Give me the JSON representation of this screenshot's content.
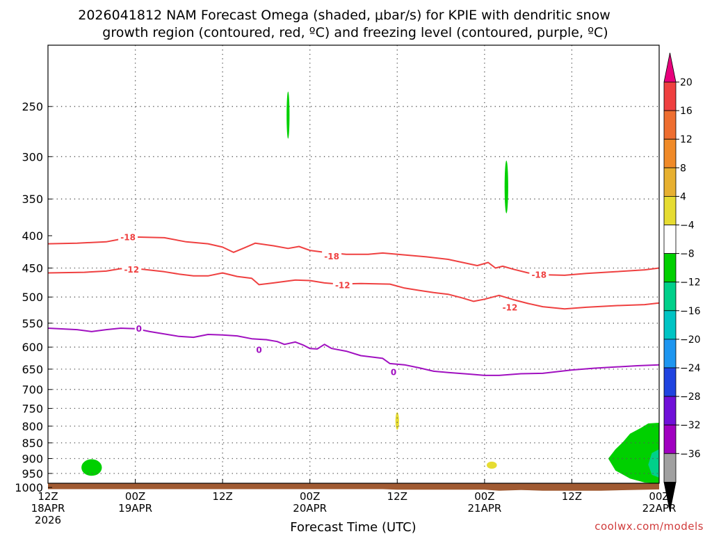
{
  "chart_data": {
    "type": "contour",
    "title_lines": [
      "2026041812 NAM Forecast Omega (shaded, μbar/s) for KPIE with dendritic snow",
      "growth region (contoured, red, ºC) and freezing level (contoured, purple, ºC)"
    ],
    "xlabel": "Forecast Time (UTC)",
    "credit": "coolwx.com/models",
    "x_ticks": [
      {
        "hour": 0,
        "line1": "12Z",
        "line2": "18APR",
        "line3": "2026"
      },
      {
        "hour": 12,
        "line1": "00Z",
        "line2": "19APR",
        "line3": ""
      },
      {
        "hour": 24,
        "line1": "12Z",
        "line2": "",
        "line3": ""
      },
      {
        "hour": 36,
        "line1": "00Z",
        "line2": "20APR",
        "line3": ""
      },
      {
        "hour": 48,
        "line1": "12Z",
        "line2": "",
        "line3": ""
      },
      {
        "hour": 60,
        "line1": "00Z",
        "line2": "21APR",
        "line3": ""
      },
      {
        "hour": 72,
        "line1": "12Z",
        "line2": "",
        "line3": ""
      },
      {
        "hour": 84,
        "line1": "00Z",
        "line2": "22APR",
        "line3": ""
      }
    ],
    "y_ticks": [
      250,
      300,
      350,
      400,
      450,
      500,
      550,
      600,
      650,
      700,
      750,
      800,
      850,
      900,
      950,
      1000
    ],
    "y_labels": [
      "250",
      "300",
      "350",
      "400",
      "450",
      "500",
      "550",
      "600",
      "650",
      "700",
      "750",
      "800",
      "850",
      "900",
      "950",
      "1000"
    ],
    "y_grid": [
      250,
      300,
      350,
      450,
      500,
      550,
      600,
      650,
      700,
      750,
      800,
      850,
      900,
      950
    ],
    "x_grid": [
      12,
      24,
      36,
      48,
      60,
      72
    ],
    "xlim": [
      0,
      84
    ],
    "ylim_hPa": [
      1030,
      200
    ],
    "grid": "dotted",
    "colorbar": {
      "placement": "right",
      "tick_labels": [
        "20",
        "16",
        "12",
        "8",
        "4",
        "−4",
        "−8",
        "−12",
        "−16",
        "−20",
        "−24",
        "−28",
        "−32",
        "−36"
      ],
      "levels": [
        20,
        16,
        12,
        8,
        4,
        -4,
        -8,
        -12,
        -16,
        -20,
        -24,
        -28,
        -32,
        -36
      ],
      "band_colors": [
        "#ef4040",
        "#ee6e30",
        "#f08a28",
        "#e7b030",
        "#e6dc32",
        "#ffffff",
        "#00d000",
        "#00d08a",
        "#00c4c4",
        "#1e96f0",
        "#2044e0",
        "#7010d8",
        "#a000c0",
        "#a0a0a0"
      ],
      "top_arrow_color": "#e8007c",
      "bottom_arrow_color": "#000000"
    },
    "contour_lines": [
      {
        "label": "-18",
        "color": "#ef4040",
        "label_positions": [
          [
            11,
            402
          ],
          [
            39,
            431
          ],
          [
            67.5,
            461
          ]
        ],
        "points": [
          [
            0,
            412
          ],
          [
            4,
            411
          ],
          [
            8,
            409
          ],
          [
            10,
            405
          ],
          [
            12,
            402
          ],
          [
            16,
            403
          ],
          [
            19,
            409
          ],
          [
            22,
            412
          ],
          [
            24,
            417
          ],
          [
            25.5,
            425
          ],
          [
            27,
            418
          ],
          [
            28.5,
            411
          ],
          [
            31,
            415
          ],
          [
            33,
            419
          ],
          [
            34.5,
            416
          ],
          [
            36,
            422
          ],
          [
            38,
            425
          ],
          [
            41,
            428
          ],
          [
            44,
            428
          ],
          [
            46,
            426
          ],
          [
            49,
            429
          ],
          [
            52,
            432
          ],
          [
            55,
            436
          ],
          [
            57,
            441
          ],
          [
            59,
            446
          ],
          [
            60.5,
            441
          ],
          [
            61.5,
            450
          ],
          [
            62.5,
            447
          ],
          [
            64,
            452
          ],
          [
            66,
            458
          ],
          [
            68,
            461
          ],
          [
            71,
            462
          ],
          [
            74,
            459
          ],
          [
            78,
            456
          ],
          [
            82,
            453
          ],
          [
            84,
            450
          ]
        ]
      },
      {
        "label": "-12",
        "color": "#ef4040",
        "label_positions": [
          [
            11.5,
            452
          ],
          [
            40.5,
            479
          ],
          [
            63.5,
            519
          ]
        ],
        "points": [
          [
            0,
            458
          ],
          [
            5,
            457
          ],
          [
            8,
            455
          ],
          [
            10,
            451
          ],
          [
            13,
            452
          ],
          [
            16,
            456
          ],
          [
            18,
            460
          ],
          [
            20,
            463
          ],
          [
            22,
            463
          ],
          [
            24,
            458
          ],
          [
            26,
            464
          ],
          [
            28,
            467
          ],
          [
            29,
            478
          ],
          [
            31,
            475
          ],
          [
            34,
            470
          ],
          [
            36,
            471
          ],
          [
            38,
            475
          ],
          [
            40,
            477
          ],
          [
            43,
            476
          ],
          [
            47,
            477
          ],
          [
            49,
            484
          ],
          [
            51,
            488
          ],
          [
            53,
            492
          ],
          [
            55,
            495
          ],
          [
            57,
            502
          ],
          [
            58.5,
            508
          ],
          [
            60,
            504
          ],
          [
            62,
            497
          ],
          [
            64,
            505
          ],
          [
            66,
            512
          ],
          [
            68,
            518
          ],
          [
            71,
            522
          ],
          [
            74,
            519
          ],
          [
            78,
            516
          ],
          [
            82,
            514
          ],
          [
            84,
            511
          ]
        ]
      },
      {
        "label": "0",
        "color": "#a010c0",
        "label_positions": [
          [
            12.5,
            561
          ],
          [
            29,
            606
          ],
          [
            47.5,
            657
          ]
        ],
        "points": [
          [
            0,
            560
          ],
          [
            4,
            563
          ],
          [
            6,
            567
          ],
          [
            8,
            563
          ],
          [
            10,
            560
          ],
          [
            12,
            561
          ],
          [
            14,
            567
          ],
          [
            18,
            577
          ],
          [
            20,
            579
          ],
          [
            22,
            573
          ],
          [
            24,
            574
          ],
          [
            26,
            576
          ],
          [
            28,
            582
          ],
          [
            30,
            584
          ],
          [
            31.5,
            588
          ],
          [
            32.5,
            594
          ],
          [
            34,
            589
          ],
          [
            35,
            595
          ],
          [
            36,
            603
          ],
          [
            37,
            604
          ],
          [
            38,
            594
          ],
          [
            39,
            603
          ],
          [
            41,
            609
          ],
          [
            43,
            619
          ],
          [
            46,
            625
          ],
          [
            47,
            637
          ],
          [
            49,
            640
          ],
          [
            51,
            647
          ],
          [
            53,
            655
          ],
          [
            55,
            658
          ],
          [
            58,
            662
          ],
          [
            60,
            665
          ],
          [
            62,
            665
          ],
          [
            65,
            661
          ],
          [
            68,
            660
          ],
          [
            72,
            652
          ],
          [
            75,
            648
          ],
          [
            78,
            645
          ],
          [
            81,
            642
          ],
          [
            84,
            640
          ]
        ]
      }
    ],
    "shaded_regions": [
      {
        "band": "-4 to -8",
        "color": "#00d000",
        "x": 6.0,
        "y": 930,
        "rx": 1.4,
        "ry": 28
      },
      {
        "band": "-4 to -8",
        "color": "#00d000",
        "x": 33.0,
        "y": 258,
        "rx": 0.2,
        "ry": 22
      },
      {
        "band": "-4 to -8",
        "color": "#00d000",
        "x": 63.0,
        "y": 335,
        "rx": 0.25,
        "ry": 32
      },
      {
        "band": "4 to 8",
        "color": "#e6dc32",
        "x": 48.0,
        "y": 785,
        "rx": 0.25,
        "ry": 25
      },
      {
        "band": "4 to 8",
        "color": "#e6dc32",
        "x": 61.0,
        "y": 922,
        "rx": 0.7,
        "ry": 12
      }
    ],
    "edge_region": {
      "outer": {
        "band": "-4 to -8",
        "color": "#00d000",
        "points": [
          [
            84,
            790
          ],
          [
            82.5,
            792
          ],
          [
            81.5,
            805
          ],
          [
            80,
            822
          ],
          [
            79,
            848
          ],
          [
            78,
            870
          ],
          [
            77,
            900
          ],
          [
            78,
            940
          ],
          [
            80,
            968
          ],
          [
            82,
            982
          ],
          [
            84,
            985
          ]
        ]
      },
      "inner": {
        "band": "-8 to -12",
        "color": "#00d08a",
        "points": [
          [
            84,
            870
          ],
          [
            83,
            882
          ],
          [
            82.5,
            920
          ],
          [
            83,
            955
          ],
          [
            84,
            965
          ]
        ]
      }
    },
    "terrain": {
      "color": "#a05a32",
      "surface_points": [
        [
          0,
          1006
        ],
        [
          24,
          1006
        ],
        [
          46,
          1006
        ],
        [
          48,
          1008
        ],
        [
          60,
          1008
        ],
        [
          62,
          1012
        ],
        [
          65,
          1009
        ],
        [
          68,
          1012
        ],
        [
          76,
          1012
        ],
        [
          80,
          1009
        ],
        [
          84,
          1007
        ]
      ]
    }
  }
}
